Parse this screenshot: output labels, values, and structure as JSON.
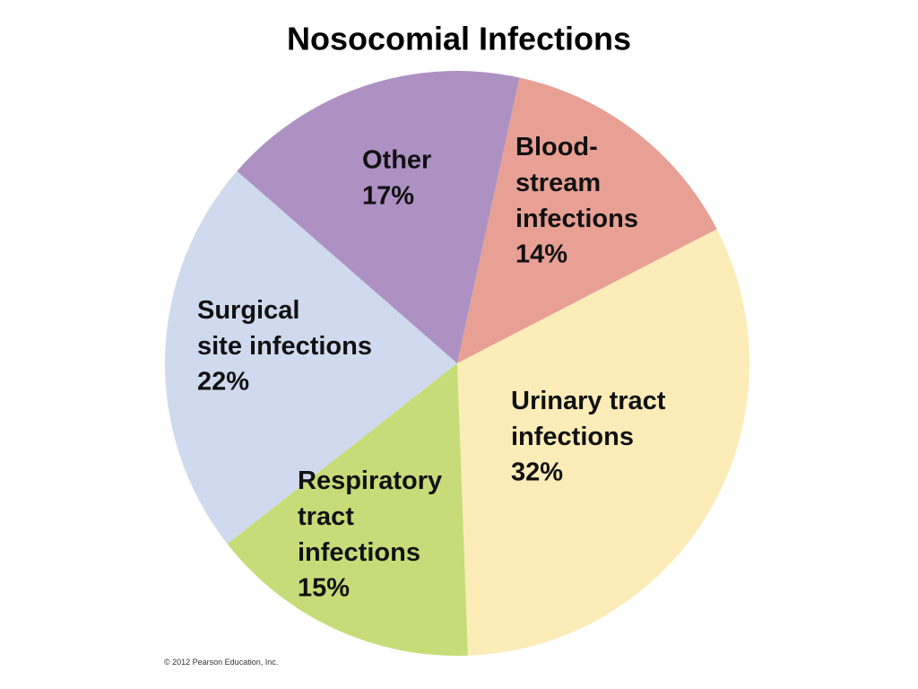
{
  "chart_data": {
    "type": "pie",
    "title": "Nosocomial Infections",
    "categories": [
      "Blood-\nstream\ninfections",
      "Urinary tract\ninfections",
      "Respiratory\ntract\ninfections",
      "Surgical\nsite infections",
      "Other"
    ],
    "values": [
      14,
      32,
      15,
      22,
      17
    ],
    "value_labels": [
      "14%",
      "32%",
      "15%",
      "22%",
      "17%"
    ],
    "colors": [
      "#e8a095",
      "#fcecb8",
      "#c6dc78",
      "#cfdaee",
      "#ae91c3"
    ],
    "credit": "© 2012 Pearson Education, Inc."
  }
}
